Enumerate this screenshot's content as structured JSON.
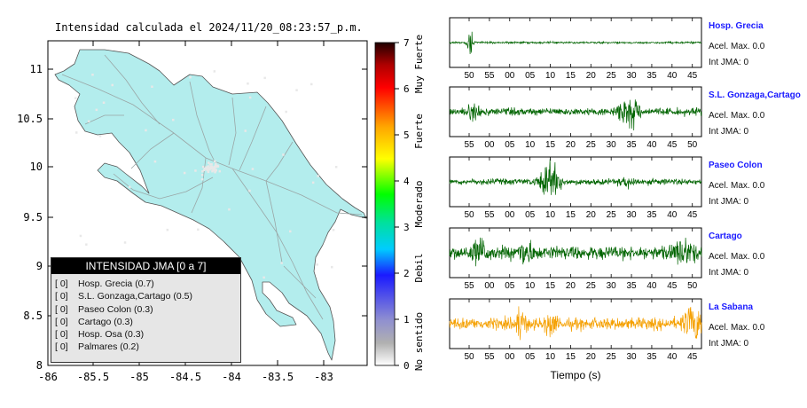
{
  "map": {
    "title": "Intensidad calculada el 2024/11/20_08:23:57_p.m.",
    "x_ticks": [
      "-86",
      "-85.5",
      "-85",
      "-84.5",
      "-84",
      "-83.5",
      "-83"
    ],
    "y_ticks": [
      "11",
      "10.5",
      "10",
      "9.5",
      "9",
      "8.5",
      "8"
    ],
    "land_color": "#b3eded"
  },
  "colorbar": {
    "ticks": [
      "0",
      "1",
      "2",
      "3",
      "4",
      "5",
      "6",
      "7"
    ],
    "category_labels": [
      "No sentido",
      "Debil",
      "Moderado",
      "Fuerte",
      "Muy Fuerte"
    ]
  },
  "legend": {
    "header": "INTENSIDAD JMA [0 a 7]",
    "items": [
      {
        "level": "[ 0]",
        "label": "Hosp. Grecia (0.7)"
      },
      {
        "level": "[ 0]",
        "label": "S.L. Gonzaga,Cartago (0.5)"
      },
      {
        "level": "[ 0]",
        "label": "Paseo Colon (0.3)"
      },
      {
        "level": "[ 0]",
        "label": "Cartago (0.3)"
      },
      {
        "level": "[ 0]",
        "label": "Hosp. Osa (0.3)"
      },
      {
        "level": "[ 0]",
        "label": "Palmares (0.2)"
      }
    ]
  },
  "seismograms": {
    "xlabel": "Tiempo (s)",
    "stations": [
      {
        "name": "Hosp. Grecia",
        "accel": "Acel. Max. 0.0",
        "intensity": "Int JMA: 0",
        "color": "#006400",
        "ticks": [
          "50",
          "55",
          "00",
          "05",
          "10",
          "15",
          "20",
          "25",
          "30",
          "35",
          "40",
          "45"
        ]
      },
      {
        "name": "S.L. Gonzaga,Cartago",
        "accel": "Acel. Max. 0.0",
        "intensity": "Int JMA: 0",
        "color": "#006400",
        "ticks": [
          "55",
          "00",
          "05",
          "10",
          "15",
          "20",
          "25",
          "30",
          "35",
          "40",
          "45",
          "50"
        ]
      },
      {
        "name": "Paseo Colon",
        "accel": "Acel. Max. 0.0",
        "intensity": "Int JMA: 0",
        "color": "#006400",
        "ticks": [
          "50",
          "55",
          "00",
          "05",
          "10",
          "15",
          "20",
          "25",
          "30",
          "35",
          "40",
          "45"
        ]
      },
      {
        "name": "Cartago",
        "accel": "Acel. Max. 0.0",
        "intensity": "Int JMA: 0",
        "color": "#006400",
        "ticks": [
          "55",
          "00",
          "05",
          "10",
          "15",
          "20",
          "25",
          "30",
          "35",
          "40",
          "45",
          "50"
        ]
      },
      {
        "name": "La Sabana",
        "accel": "Acel. Max. 0.0",
        "intensity": "Int JMA: 0",
        "color": "#f5a000",
        "ticks": [
          "50",
          "55",
          "00",
          "05",
          "10",
          "15",
          "20",
          "25",
          "30",
          "35",
          "40",
          "45"
        ]
      }
    ]
  }
}
